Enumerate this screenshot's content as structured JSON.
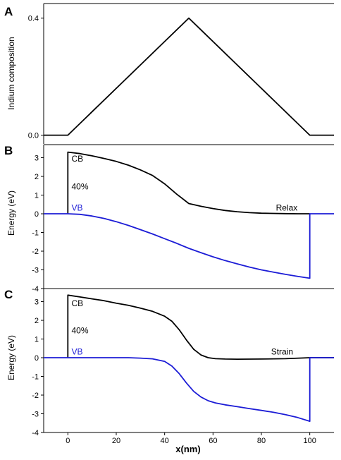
{
  "figure": {
    "xlabel": "x(nm)",
    "xticks": [
      "0",
      "20",
      "40",
      "60",
      "80",
      "100"
    ],
    "xlim": [
      -10,
      110
    ]
  },
  "chart_data": [
    {
      "panel": "A",
      "type": "line",
      "ylabel": "Indium composition",
      "ylim": [
        -0.03,
        0.45
      ],
      "yticks": [
        {
          "value": 0,
          "label": "0.0"
        },
        {
          "value": 0.4,
          "label": "0.4"
        }
      ],
      "series": [
        {
          "color": "#000000",
          "x": [
            -10,
            0,
            50,
            100,
            110
          ],
          "y": [
            0,
            0,
            0.4,
            0,
            0
          ]
        }
      ],
      "annotations": []
    },
    {
      "panel": "B",
      "type": "line",
      "ylabel": "Energy (eV)",
      "ylim": [
        -4,
        3.7
      ],
      "yticks": [
        {
          "value": 3,
          "label": "3"
        },
        {
          "value": 2,
          "label": "2"
        },
        {
          "value": 1,
          "label": "1"
        },
        {
          "value": 0,
          "label": "0"
        },
        {
          "value": -1,
          "label": "-1"
        },
        {
          "value": -2,
          "label": "-2"
        },
        {
          "value": -3,
          "label": "-3"
        },
        {
          "value": -4,
          "label": "-4"
        }
      ],
      "series": [
        {
          "color": "#000000",
          "x": [
            0,
            0,
            5,
            10,
            15,
            20,
            25,
            30,
            35,
            40,
            45,
            50,
            55,
            60,
            65,
            70,
            75,
            80,
            85,
            90,
            95,
            100
          ],
          "y": [
            0,
            3.3,
            3.22,
            3.1,
            2.96,
            2.8,
            2.6,
            2.35,
            2.05,
            1.6,
            1.05,
            0.55,
            0.4,
            0.28,
            0.18,
            0.11,
            0.06,
            0.03,
            0.02,
            0.01,
            0.0,
            0.0
          ]
        },
        {
          "color": "#1c1cd6",
          "x": [
            -10,
            0,
            5,
            10,
            15,
            20,
            25,
            30,
            35,
            40,
            45,
            50,
            55,
            60,
            65,
            70,
            75,
            80,
            85,
            90,
            95,
            100,
            100,
            110
          ],
          "y": [
            0,
            0,
            -0.03,
            -0.12,
            -0.25,
            -0.42,
            -0.62,
            -0.85,
            -1.08,
            -1.33,
            -1.58,
            -1.85,
            -2.08,
            -2.3,
            -2.5,
            -2.68,
            -2.85,
            -3.0,
            -3.12,
            -3.24,
            -3.35,
            -3.45,
            0,
            0
          ]
        }
      ],
      "annotations": [
        {
          "text": "CB",
          "x": 1.5,
          "y": 2.8,
          "color": "#000000"
        },
        {
          "text": "40%",
          "x": 1.5,
          "y": 1.3,
          "color": "#000000"
        },
        {
          "text": "VB",
          "x": 1.5,
          "y": 0.18,
          "color": "#1c1cd6"
        },
        {
          "text": "Relax",
          "x": 86,
          "y": 0.18,
          "color": "#000000"
        }
      ]
    },
    {
      "panel": "C",
      "type": "line",
      "ylabel": "Energy (eV)",
      "ylim": [
        -4,
        3.7
      ],
      "yticks": [
        {
          "value": 3,
          "label": "3"
        },
        {
          "value": 2,
          "label": "2"
        },
        {
          "value": 1,
          "label": "1"
        },
        {
          "value": 0,
          "label": "0"
        },
        {
          "value": -1,
          "label": "-1"
        },
        {
          "value": -2,
          "label": "-2"
        },
        {
          "value": -3,
          "label": "-3"
        },
        {
          "value": -4,
          "label": "-4"
        }
      ],
      "series": [
        {
          "color": "#000000",
          "x": [
            0,
            0,
            5,
            10,
            15,
            20,
            25,
            30,
            35,
            40,
            43,
            46,
            49,
            52,
            55,
            58,
            61,
            65,
            70,
            80,
            90,
            100,
            110
          ],
          "y": [
            0,
            3.35,
            3.25,
            3.15,
            3.05,
            2.92,
            2.8,
            2.65,
            2.48,
            2.22,
            1.95,
            1.5,
            0.95,
            0.45,
            0.15,
            0.0,
            -0.05,
            -0.07,
            -0.08,
            -0.07,
            -0.05,
            0.0,
            0.0
          ]
        },
        {
          "color": "#1c1cd6",
          "x": [
            -10,
            0,
            5,
            10,
            15,
            20,
            25,
            30,
            35,
            40,
            43,
            46,
            49,
            52,
            55,
            58,
            61,
            65,
            70,
            75,
            80,
            85,
            90,
            95,
            100,
            100,
            110
          ],
          "y": [
            0,
            0,
            0,
            0,
            0,
            0,
            0,
            -0.02,
            -0.06,
            -0.2,
            -0.45,
            -0.85,
            -1.35,
            -1.8,
            -2.1,
            -2.3,
            -2.42,
            -2.52,
            -2.62,
            -2.72,
            -2.82,
            -2.92,
            -3.05,
            -3.2,
            -3.4,
            0,
            0
          ]
        }
      ],
      "annotations": [
        {
          "text": "CB",
          "x": 1.5,
          "y": 2.75,
          "color": "#000000"
        },
        {
          "text": "40%",
          "x": 1.5,
          "y": 1.3,
          "color": "#000000"
        },
        {
          "text": "VB",
          "x": 1.5,
          "y": 0.18,
          "color": "#1c1cd6"
        },
        {
          "text": "Strain",
          "x": 84,
          "y": 0.18,
          "color": "#000000"
        }
      ]
    }
  ]
}
